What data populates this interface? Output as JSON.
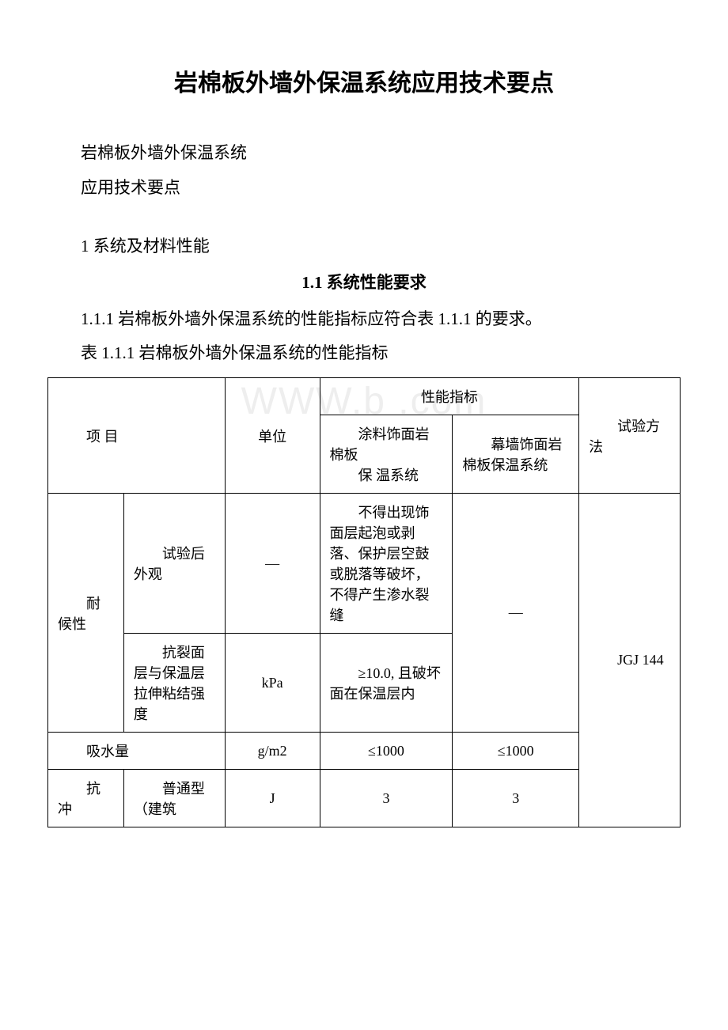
{
  "watermark": "WWW.b    .com",
  "title": "岩棉板外墙外保温系统应用技术要点",
  "paras": {
    "p1": "岩棉板外墙外保温系统",
    "p2": "应用技术要点",
    "p3": "1 系统及材料性能",
    "sec11": "1.1 系统性能要求",
    "p4": "1.1.1 岩棉板外墙外保温系统的性能指标应符合表 1.1.1 的要求。",
    "p5": "表 1.1.1 岩棉板外墙外保温系统的性能指标"
  },
  "table": {
    "h_project": "项 目",
    "h_unit": "单位",
    "h_perf": "性能指标",
    "h_paint": "涂料饰面岩棉板",
    "h_paint2": "保 温系统",
    "h_curtain": "幕墙饰面岩棉板保温系统",
    "h_method": "试验方法",
    "r1_a": "耐候性",
    "r1_b": "试验后外观",
    "r1_c": "—",
    "r1_d": "不得出现饰面层起泡或剥落、保护层空鼓或脱落等破坏，不得产生渗水裂缝",
    "r1_e": "—",
    "r1_f": "JGJ 144",
    "r2_b": "抗裂面层与保温层拉伸粘结强度",
    "r2_c": "kPa",
    "r2_d": "≥10.0, 且破坏面在保温层内",
    "r3_a": "吸水量",
    "r3_c": "g/m2",
    "r3_d": "≤1000",
    "r3_e": "≤1000",
    "r4_a": "抗冲",
    "r4_b": "普通型  （建筑",
    "r4_c": "J",
    "r4_d": "3",
    "r4_e": "3"
  }
}
